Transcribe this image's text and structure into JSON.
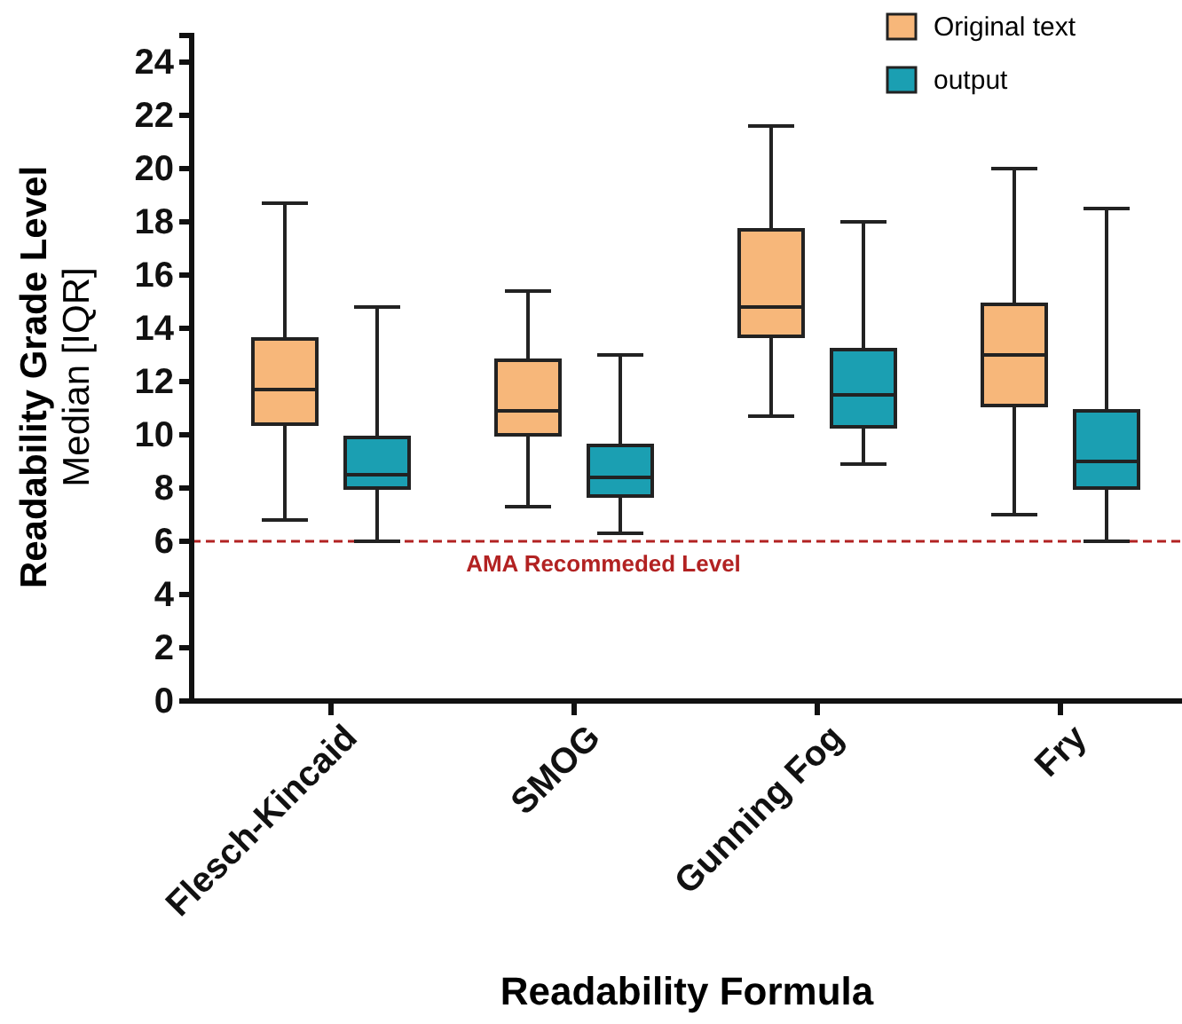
{
  "chart_data": {
    "type": "box",
    "xlabel": "Readability Formula",
    "ylabel": "Readability Grade Level\nMedian [IQR]",
    "categories": [
      "Flesch-Kincaid",
      "SMOG",
      "Gunning Fog",
      "Fry"
    ],
    "series": [
      {
        "name": "Original text",
        "color": "#f7b77a",
        "boxes": [
          {
            "low": 6.8,
            "q1": 10.4,
            "median": 11.7,
            "q3": 13.6,
            "high": 18.7
          },
          {
            "low": 7.3,
            "q1": 10.0,
            "median": 10.9,
            "q3": 12.8,
            "high": 15.4
          },
          {
            "low": 10.7,
            "q1": 13.7,
            "median": 14.8,
            "q3": 17.7,
            "high": 21.6
          },
          {
            "low": 7.0,
            "q1": 11.1,
            "median": 13.0,
            "q3": 14.9,
            "high": 20.0
          }
        ]
      },
      {
        "name": "output",
        "color": "#1b9fb2",
        "boxes": [
          {
            "low": 6.0,
            "q1": 8.0,
            "median": 8.5,
            "q3": 9.9,
            "high": 14.8
          },
          {
            "low": 6.3,
            "q1": 7.7,
            "median": 8.4,
            "q3": 9.6,
            "high": 13.0
          },
          {
            "low": 8.9,
            "q1": 10.3,
            "median": 11.5,
            "q3": 13.2,
            "high": 18.0
          },
          {
            "low": 6.0,
            "q1": 8.0,
            "median": 9.0,
            "q3": 10.9,
            "high": 18.5
          }
        ]
      }
    ],
    "ylim": [
      0,
      25
    ],
    "yticks": [
      0,
      2,
      4,
      6,
      8,
      10,
      12,
      14,
      16,
      18,
      20,
      22,
      24
    ],
    "ref_lines": [
      {
        "axis": "y",
        "value": 6,
        "label": "AMA Recommeded Level",
        "color": "#b22222",
        "line_style": "dashed"
      }
    ],
    "legend": "top right",
    "grid": false
  }
}
